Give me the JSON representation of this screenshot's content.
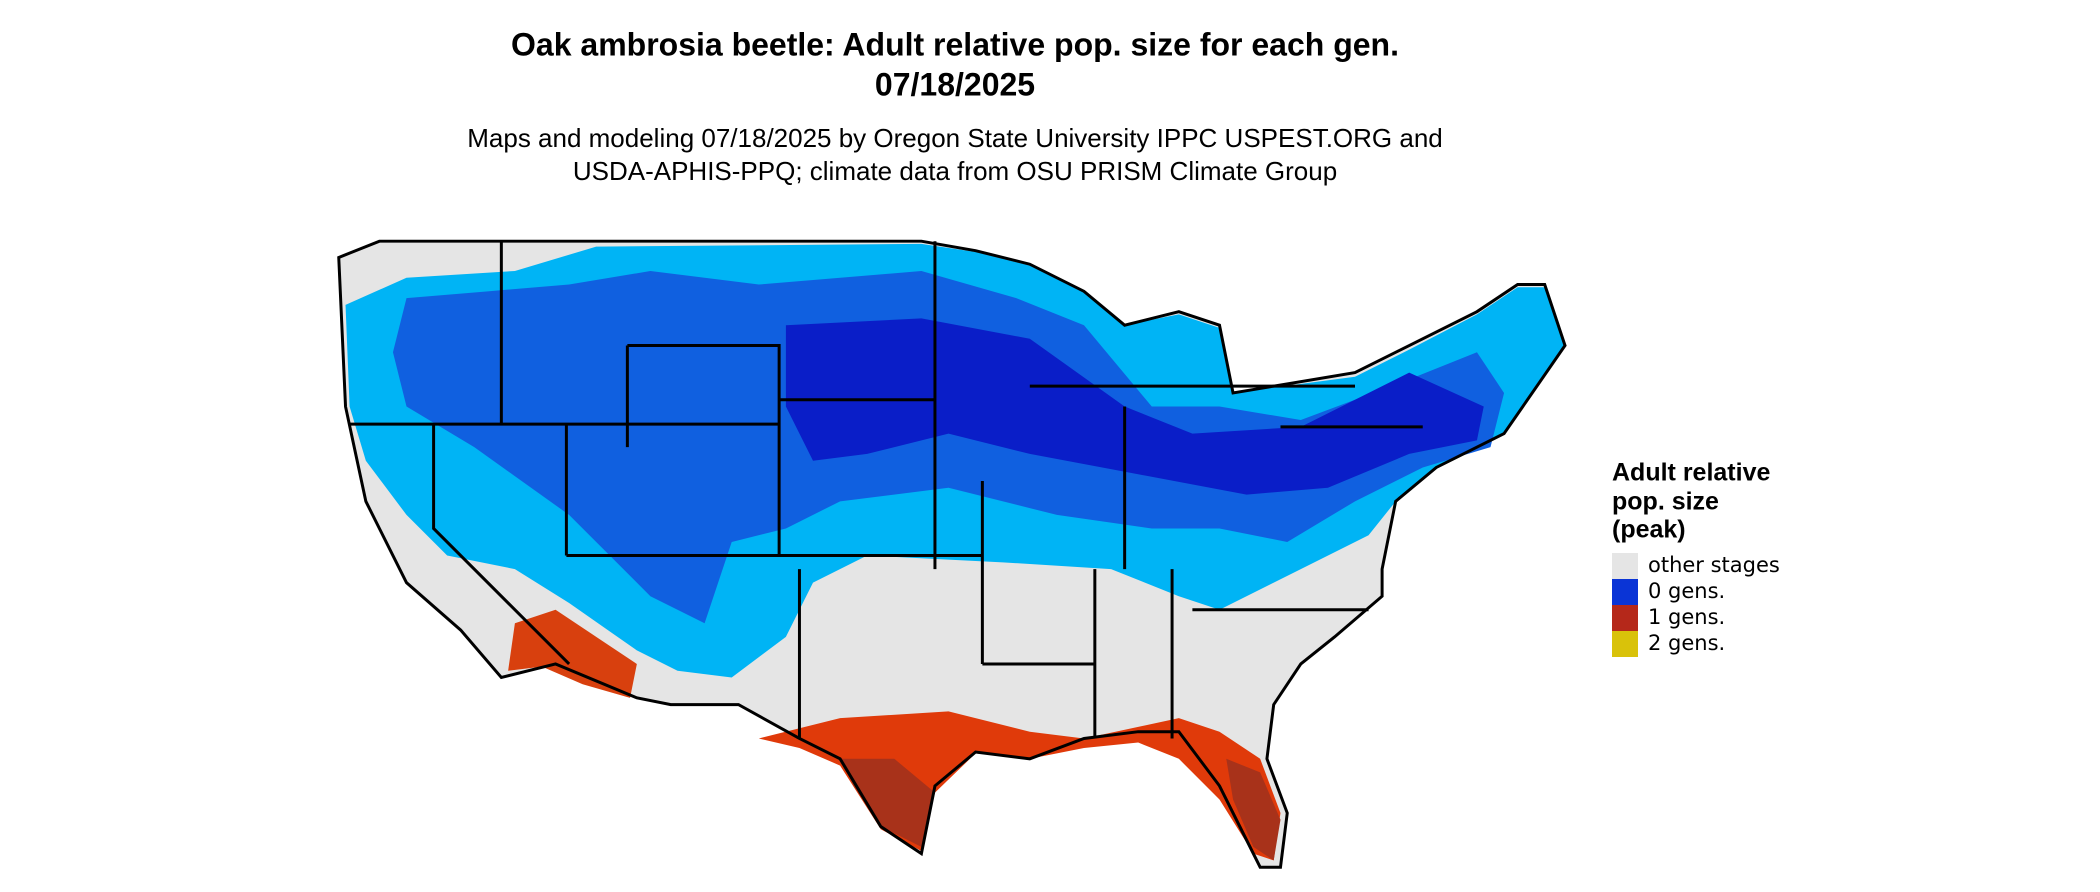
{
  "title": [
    "Oak ambrosia beetle: Adult relative pop. size for each gen.",
    "07/18/2025"
  ],
  "subtitle": [
    "Maps and modeling 07/18/2025 by Oregon State University IPPC USPEST.ORG and",
    "USDA-APHIS-PPQ; climate data from OSU PRISM Climate Group"
  ],
  "legend": {
    "title": [
      "Adult relative",
      "pop. size",
      "(peak)"
    ],
    "items": [
      {
        "label": "other stages",
        "color": "#e5e5e5"
      },
      {
        "label": "0 gens.",
        "color": "#0a34d6"
      },
      {
        "label": "1 gens.",
        "color": "#b5281a"
      },
      {
        "label": "2 gens.",
        "color": "#d9c20a"
      }
    ]
  }
}
